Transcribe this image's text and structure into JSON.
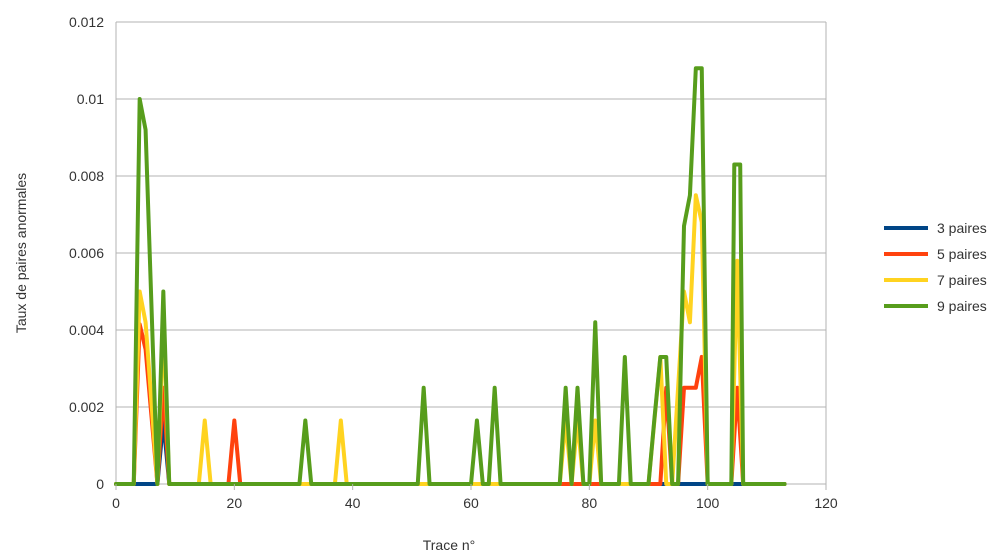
{
  "chart_data": {
    "type": "line",
    "title": "",
    "xlabel": "Trace n°",
    "ylabel": "Taux de paires anormales",
    "xlim": [
      0,
      120
    ],
    "ylim": [
      0,
      0.012
    ],
    "x_ticks": [
      "0",
      "20",
      "40",
      "60",
      "80",
      "100",
      "120"
    ],
    "y_ticks": [
      "0",
      "0.002",
      "0.004",
      "0.006",
      "0.008",
      "0.01",
      "0.012"
    ],
    "grid": true,
    "legend_position": "right",
    "series": [
      {
        "name": "3 paires",
        "color": "#004586",
        "points": [
          [
            0,
            0
          ],
          [
            7,
            0
          ],
          [
            8,
            0.00165
          ],
          [
            9,
            0
          ],
          [
            113,
            0
          ]
        ]
      },
      {
        "name": "5 paires",
        "color": "#ff420e",
        "points": [
          [
            0,
            0
          ],
          [
            3,
            0
          ],
          [
            4,
            0.00415
          ],
          [
            5,
            0.0035
          ],
          [
            7,
            0
          ],
          [
            8,
            0.0025
          ],
          [
            9,
            0
          ],
          [
            19,
            0
          ],
          [
            20,
            0.00165
          ],
          [
            21,
            0
          ],
          [
            92,
            0
          ],
          [
            93,
            0.0025
          ],
          [
            94,
            0
          ],
          [
            95,
            0
          ],
          [
            96,
            0.0025
          ],
          [
            98,
            0.0025
          ],
          [
            99,
            0.0033
          ],
          [
            100,
            0
          ],
          [
            104,
            0
          ],
          [
            105,
            0.0025
          ],
          [
            106,
            0
          ],
          [
            113,
            0
          ]
        ]
      },
      {
        "name": "7 paires",
        "color": "#ffd320",
        "points": [
          [
            0,
            0
          ],
          [
            3,
            0
          ],
          [
            4,
            0.005
          ],
          [
            5,
            0.0042
          ],
          [
            7,
            0
          ],
          [
            8,
            0.0042
          ],
          [
            9,
            0
          ],
          [
            14,
            0
          ],
          [
            15,
            0.00165
          ],
          [
            16,
            0
          ],
          [
            37,
            0
          ],
          [
            38,
            0.00165
          ],
          [
            39,
            0
          ],
          [
            75,
            0
          ],
          [
            76,
            0.00165
          ],
          [
            77,
            0
          ],
          [
            78,
            0.00165
          ],
          [
            79,
            0
          ],
          [
            80,
            0
          ],
          [
            81,
            0.00165
          ],
          [
            82,
            0
          ],
          [
            90,
            0
          ],
          [
            91,
            0.00165
          ],
          [
            92,
            0.0033
          ],
          [
            93,
            0
          ],
          [
            94,
            0
          ],
          [
            96,
            0.005
          ],
          [
            97,
            0.0042
          ],
          [
            98,
            0.0075
          ],
          [
            99,
            0.0068
          ],
          [
            100,
            0
          ],
          [
            104,
            0
          ],
          [
            105,
            0.0058
          ],
          [
            106,
            0
          ],
          [
            113,
            0
          ]
        ]
      },
      {
        "name": "9 paires",
        "color": "#579d1c",
        "points": [
          [
            0,
            0
          ],
          [
            3,
            0
          ],
          [
            4,
            0.01
          ],
          [
            5,
            0.0092
          ],
          [
            7,
            0
          ],
          [
            8,
            0.005
          ],
          [
            9,
            0
          ],
          [
            31,
            0
          ],
          [
            32,
            0.00165
          ],
          [
            33,
            0
          ],
          [
            51,
            0
          ],
          [
            52,
            0.0025
          ],
          [
            53,
            0
          ],
          [
            60,
            0
          ],
          [
            61,
            0.00165
          ],
          [
            62,
            0
          ],
          [
            63,
            0
          ],
          [
            64,
            0.0025
          ],
          [
            65,
            0
          ],
          [
            75,
            0
          ],
          [
            76,
            0.0025
          ],
          [
            77,
            0
          ],
          [
            78,
            0.0025
          ],
          [
            79,
            0
          ],
          [
            80,
            0
          ],
          [
            81,
            0.0042
          ],
          [
            82,
            0
          ],
          [
            85,
            0
          ],
          [
            86,
            0.0033
          ],
          [
            87,
            0
          ],
          [
            90,
            0
          ],
          [
            91,
            0.0017
          ],
          [
            92,
            0.0033
          ],
          [
            93,
            0.0033
          ],
          [
            94,
            0
          ],
          [
            95,
            0
          ],
          [
            96,
            0.0067
          ],
          [
            97,
            0.0075
          ],
          [
            98,
            0.0108
          ],
          [
            99,
            0.0108
          ],
          [
            100,
            0
          ],
          [
            104,
            0
          ],
          [
            104.5,
            0.0083
          ],
          [
            105.5,
            0.0083
          ],
          [
            106,
            0
          ],
          [
            113,
            0
          ]
        ]
      }
    ]
  }
}
